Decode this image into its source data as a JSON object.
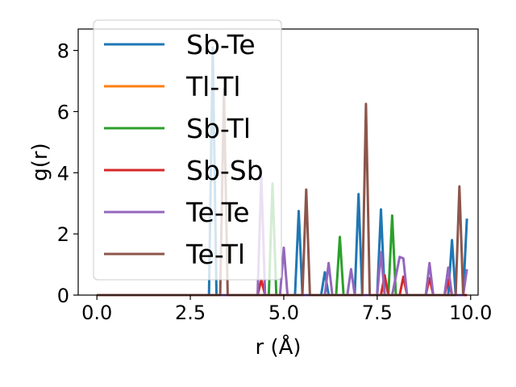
{
  "chart_data": {
    "type": "line",
    "xlabel": "r (Å)",
    "ylabel": "g(r)",
    "xlim": [
      -0.5,
      10.2
    ],
    "ylim": [
      0,
      8.7
    ],
    "xticks": [
      "0.0",
      "2.5",
      "5.0",
      "7.5",
      "10.0"
    ],
    "yticks": [
      "0",
      "2",
      "4",
      "6",
      "8"
    ],
    "grid": false,
    "legend_position": "upper-left",
    "series": [
      {
        "name": "Sb-Te",
        "color": "#1f77b4",
        "points": [
          [
            0,
            0
          ],
          [
            3.0,
            0
          ],
          [
            3.1,
            8.1
          ],
          [
            3.2,
            0
          ],
          [
            5.3,
            0
          ],
          [
            5.4,
            2.75
          ],
          [
            5.5,
            0
          ],
          [
            6.0,
            0
          ],
          [
            6.1,
            0.75
          ],
          [
            6.2,
            0
          ],
          [
            6.9,
            0
          ],
          [
            7.0,
            3.3
          ],
          [
            7.1,
            0
          ],
          [
            7.5,
            0
          ],
          [
            7.6,
            2.8
          ],
          [
            7.7,
            0
          ],
          [
            9.4,
            0
          ],
          [
            9.5,
            1.8
          ],
          [
            9.6,
            0
          ],
          [
            9.8,
            0
          ],
          [
            9.9,
            2.5
          ]
        ]
      },
      {
        "name": "Tl-Tl",
        "color": "#ff7f0e",
        "points": [
          [
            0,
            0
          ],
          [
            9.9,
            0
          ]
        ]
      },
      {
        "name": "Sb-Tl",
        "color": "#2ca02c",
        "points": [
          [
            0,
            0
          ],
          [
            4.6,
            0
          ],
          [
            4.7,
            3.65
          ],
          [
            4.8,
            0
          ],
          [
            6.4,
            0
          ],
          [
            6.5,
            1.9
          ],
          [
            6.6,
            0
          ],
          [
            7.8,
            0
          ],
          [
            7.9,
            2.6
          ],
          [
            8.0,
            0
          ],
          [
            9.9,
            0
          ]
        ]
      },
      {
        "name": "Sb-Sb",
        "color": "#d62728",
        "points": [
          [
            0,
            0
          ],
          [
            4.3,
            0
          ],
          [
            4.4,
            0.5
          ],
          [
            4.5,
            0
          ],
          [
            7.6,
            0
          ],
          [
            7.7,
            0.65
          ],
          [
            7.8,
            0
          ],
          [
            8.1,
            0
          ],
          [
            8.2,
            0.6
          ],
          [
            8.3,
            0
          ],
          [
            8.8,
            0
          ],
          [
            8.9,
            0.55
          ],
          [
            9.0,
            0
          ],
          [
            9.3,
            0
          ],
          [
            9.4,
            0.5
          ],
          [
            9.5,
            0
          ],
          [
            9.9,
            0
          ]
        ]
      },
      {
        "name": "Te-Te",
        "color": "#9467bd",
        "points": [
          [
            0,
            0
          ],
          [
            4.3,
            0
          ],
          [
            4.4,
            3.9
          ],
          [
            4.5,
            0
          ],
          [
            4.9,
            0
          ],
          [
            5.0,
            1.55
          ],
          [
            5.1,
            0
          ],
          [
            6.1,
            0
          ],
          [
            6.2,
            1.05
          ],
          [
            6.3,
            0
          ],
          [
            6.7,
            0
          ],
          [
            6.8,
            0.85
          ],
          [
            6.9,
            0
          ],
          [
            7.5,
            0
          ],
          [
            7.6,
            1.4
          ],
          [
            7.7,
            0
          ],
          [
            7.9,
            0
          ],
          [
            8.1,
            1.25
          ],
          [
            8.2,
            1.2
          ],
          [
            8.3,
            0
          ],
          [
            8.8,
            0
          ],
          [
            8.9,
            1.05
          ],
          [
            9.0,
            0
          ],
          [
            9.3,
            0
          ],
          [
            9.4,
            0.9
          ],
          [
            9.5,
            0
          ],
          [
            9.8,
            0
          ],
          [
            9.9,
            0.85
          ]
        ]
      },
      {
        "name": "Te-Tl",
        "color": "#8c564b",
        "points": [
          [
            0,
            0
          ],
          [
            3.3,
            0
          ],
          [
            3.4,
            6.75
          ],
          [
            3.5,
            0
          ],
          [
            5.5,
            0
          ],
          [
            5.6,
            3.45
          ],
          [
            5.7,
            0
          ],
          [
            7.1,
            0
          ],
          [
            7.2,
            6.25
          ],
          [
            7.3,
            0
          ],
          [
            9.6,
            0
          ],
          [
            9.7,
            3.55
          ],
          [
            9.8,
            0
          ]
        ]
      }
    ]
  }
}
